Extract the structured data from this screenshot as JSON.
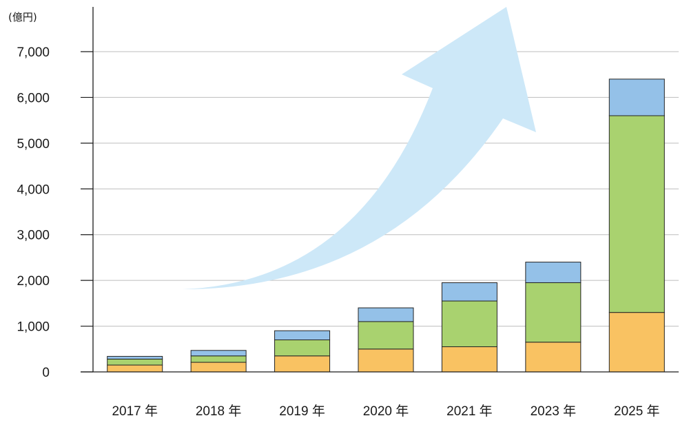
{
  "chart_data": {
    "type": "bar",
    "stacked": true,
    "unit_label": "(億円)",
    "categories": [
      "2017 年",
      "2018 年",
      "2019 年",
      "2020 年",
      "2021 年",
      "2023 年",
      "2025 年"
    ],
    "series": [
      {
        "values": [
          150,
          210,
          350,
          500,
          550,
          650,
          1300
        ],
        "color": "#f9c262"
      },
      {
        "values": [
          130,
          140,
          350,
          600,
          1000,
          1300,
          4300
        ],
        "color": "#a9d26f"
      },
      {
        "values": [
          60,
          120,
          200,
          300,
          400,
          450,
          800
        ],
        "color": "#94c1e8"
      }
    ],
    "yticks": [
      "0",
      "1,000",
      "2,000",
      "3,000",
      "4,000",
      "5,000",
      "6,000",
      "7,000"
    ],
    "ylim": [
      0,
      7000
    ],
    "grid": true,
    "legend": false,
    "trend_arrow_color": "#cde8f8"
  }
}
